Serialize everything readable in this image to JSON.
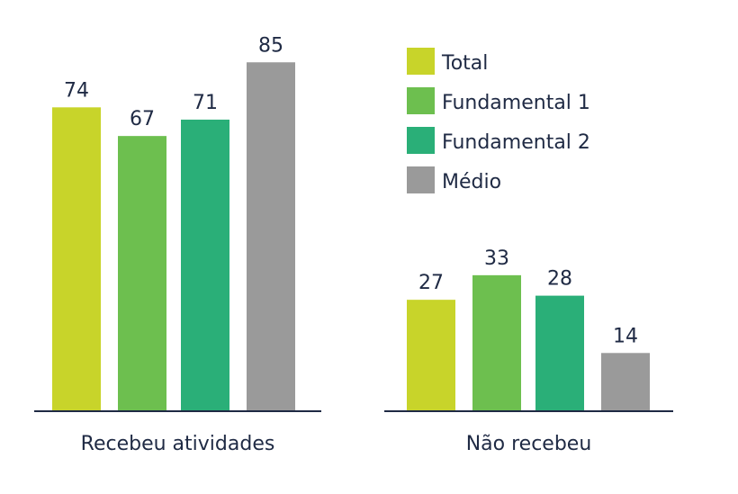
{
  "chart_data": {
    "type": "bar",
    "title": "",
    "xlabel": "",
    "ylabel": "",
    "ylim": [
      0,
      100
    ],
    "grid": false,
    "legend_position": "top-right",
    "categories": [
      "Recebeu atividades",
      "Não recebeu"
    ],
    "series": [
      {
        "name": "Total",
        "color": "#c8d42a",
        "values": [
          74,
          27
        ]
      },
      {
        "name": "Fundamental 1",
        "color": "#6dbf4f",
        "values": [
          67,
          33
        ]
      },
      {
        "name": "Fundamental 2",
        "color": "#2aaf78",
        "values": [
          71,
          28
        ]
      },
      {
        "name": "Médio",
        "color": "#9a9a9a",
        "values": [
          85,
          14
        ]
      }
    ]
  }
}
